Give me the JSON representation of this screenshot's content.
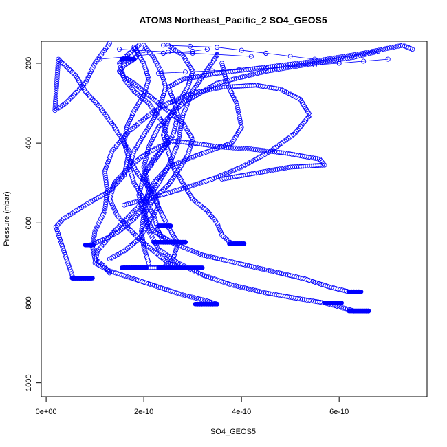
{
  "chart_data": {
    "type": "scatter",
    "title": "ATOM3 Northeast_Pacific_2 SO4_GEOS5",
    "xlabel": "SO4_GEOS5",
    "ylabel": "Pressure (mbar)",
    "xlim": [
      -1e-11,
      7.8e-10
    ],
    "ylim": [
      1035,
      145
    ],
    "y_reversed": true,
    "grid": false,
    "x_ticks": [
      0,
      2e-10,
      4e-10,
      6e-10
    ],
    "x_tick_labels": [
      "0e+00",
      "2e-10",
      "4e-10",
      "6e-10"
    ],
    "y_ticks": [
      200,
      400,
      600,
      800,
      1000
    ],
    "y_tick_labels": [
      "200",
      "400",
      "600",
      "800",
      "1000"
    ],
    "marker": "open-circle",
    "color": "#0000ff",
    "profiles": [
      {
        "x": [
          9.2e-11,
          8.5e-11,
          5.5e-11,
          2e-11,
          3.5e-11,
          8e-11,
          1.3e-10,
          1.6e-10,
          1.7e-10,
          1.4e-10,
          1.1e-10,
          8e-11,
          6e-11,
          2.5e-11,
          1.8e-11,
          4e-11,
          8e-11,
          1e-10,
          1.3e-10
        ],
        "y": [
          738,
          738,
          738,
          610,
          590,
          555,
          520,
          480,
          420,
          360,
          310,
          270,
          230,
          190,
          318,
          300,
          250,
          200,
          150
        ]
      },
      {
        "x": [
          9e-11,
          1.2e-10,
          1.5e-10,
          1.8e-10,
          2e-10,
          2.1e-10,
          2e-10,
          2.2e-10,
          2.5e-10,
          2.4e-10,
          2.1e-10,
          1.8e-10,
          1.6e-10,
          1.5e-10,
          1.7e-10,
          1.9e-10
        ],
        "y": [
          655,
          640,
          620,
          590,
          560,
          520,
          480,
          440,
          400,
          350,
          300,
          270,
          240,
          200,
          175,
          155
        ]
      },
      {
        "x": [
          2.85e-10,
          2.7e-10,
          2.4e-10,
          2.3e-10,
          2.2e-10,
          2e-10,
          1.8e-10,
          1.7e-10,
          1.8e-10,
          2e-10,
          2.2e-10,
          2.35e-10,
          2.45e-10,
          2.35e-10,
          2.2e-10,
          2e-10
        ],
        "y": [
          648,
          648,
          648,
          620,
          580,
          540,
          500,
          460,
          420,
          380,
          340,
          300,
          260,
          220,
          185,
          155
        ]
      },
      {
        "x": [
          4.05e-10,
          3.8e-10,
          3.6e-10,
          3.5e-10,
          3.3e-10,
          3e-10,
          2.8e-10,
          2.6e-10,
          2.5e-10,
          2.4e-10,
          2.5e-10,
          2.7e-10,
          2.9e-10,
          3e-10,
          2.8e-10,
          2.5e-10
        ],
        "y": [
          652,
          652,
          630,
          600,
          570,
          540,
          500,
          460,
          420,
          380,
          340,
          300,
          260,
          220,
          180,
          155
        ]
      },
      {
        "x": [
          3.1e-10,
          3.5e-10,
          3.3e-10,
          2.8e-10,
          2.3e-10,
          1.8e-10,
          1.3e-10,
          1e-10,
          1.05e-10,
          1.4e-10,
          1.8e-10,
          2.2e-10,
          2.5e-10,
          2.7e-10,
          2.8e-10,
          3e-10,
          3.5e-10
        ],
        "y": [
          803,
          803,
          795,
          780,
          760,
          740,
          720,
          700,
          670,
          620,
          570,
          520,
          460,
          400,
          330,
          270,
          180
        ]
      },
      {
        "x": [
          6.6e-10,
          6.3e-10,
          6e-10,
          5.7e-10,
          5.2e-10,
          4.5e-10,
          3.8e-10,
          3.2e-10,
          2.7e-10,
          2.3e-10,
          2.1e-10,
          2e-10,
          2.2e-10,
          2.5e-10,
          3.1e-10,
          3.8e-10,
          4e-10,
          3.9e-10,
          3.7e-10,
          3.6e-10
        ],
        "y": [
          820,
          820,
          810,
          800,
          790,
          775,
          755,
          730,
          700,
          665,
          620,
          560,
          500,
          460,
          430,
          400,
          360,
          300,
          250,
          200
        ]
      },
      {
        "x": [
          6.4e-10,
          6.2e-10,
          5.8e-10,
          5.3e-10,
          4.6e-10,
          3.9e-10,
          3.2e-10,
          2.6e-10,
          2.2e-10,
          2e-10,
          1.9e-10,
          2e-10,
          2.3e-10,
          2.6e-10,
          2.7e-10,
          2.6e-10,
          2.5e-10,
          2.8e-10,
          3.5e-10,
          4.5e-10,
          5.5e-10,
          6.5e-10,
          7.3e-10,
          7.5e-10
        ],
        "y": [
          772,
          772,
          760,
          740,
          720,
          700,
          680,
          650,
          620,
          580,
          530,
          480,
          430,
          380,
          330,
          290,
          260,
          240,
          225,
          210,
          195,
          175,
          155,
          165
        ]
      },
      {
        "x": [
          1.6e-10,
          1.8e-10,
          2.1e-10,
          2.4e-10,
          2.6e-10,
          2.7e-10,
          2.5e-10,
          2.3e-10,
          2.1e-10,
          2e-10,
          2.1e-10,
          2.3e-10,
          2.8e-10,
          3.5e-10,
          4.5e-10,
          5.5e-10,
          6.3e-10,
          6.8e-10
        ],
        "y": [
          712,
          712,
          712,
          712,
          690,
          650,
          610,
          560,
          510,
          460,
          410,
          360,
          300,
          250,
          220,
          200,
          185,
          170
        ]
      },
      {
        "x": [
          1.3e-10,
          1.6e-10,
          1.9e-10,
          2.1e-10,
          2.3e-10,
          2.2e-10,
          1.9e-10,
          1.7e-10,
          1.6e-10,
          1.65e-10,
          1.8e-10,
          2e-10,
          2.1e-10,
          2e-10,
          1.8e-10
        ],
        "y": [
          690,
          670,
          640,
          600,
          560,
          520,
          480,
          440,
          400,
          360,
          320,
          280,
          240,
          200,
          160
        ]
      },
      {
        "x": [
          2.7e-10,
          2.5e-10,
          2.3e-10,
          2e-10,
          1.7e-10,
          1.45e-10,
          1.3e-10,
          1.4e-10,
          1.7e-10,
          2e-10,
          2.3e-10,
          2.6e-10,
          3e-10,
          3.6e-10,
          4.2e-10,
          4.9e-10,
          5.6e-10,
          5.7e-10,
          5e-10,
          4.3e-10,
          3.6e-10
        ],
        "y": [
          710,
          700,
          680,
          650,
          615,
          580,
          540,
          500,
          460,
          430,
          410,
          395,
          400,
          410,
          415,
          425,
          440,
          455,
          460,
          475,
          490
        ]
      },
      {
        "x": [
          1.3e-10,
          1.2e-10,
          1e-10,
          9.5e-11,
          1e-10,
          1.2e-10,
          1.25e-10,
          1.2e-10,
          1.35e-10,
          1.7e-10,
          2.1e-10,
          2.5e-10,
          3e-10,
          3.6e-10,
          4.3e-10,
          4.8e-10,
          5.2e-10,
          5.4e-10,
          5.1e-10,
          4.6e-10,
          4e-10,
          3.4e-10,
          2.9e-10,
          2.5e-10,
          2.2e-10,
          1.9e-10,
          1.6e-10
        ],
        "y": [
          725,
          710,
          690,
          660,
          620,
          570,
          520,
          470,
          420,
          370,
          330,
          300,
          275,
          260,
          255,
          265,
          290,
          330,
          375,
          420,
          460,
          490,
          510,
          525,
          535,
          545,
          555
        ]
      },
      {
        "x": [
          2.1e-10,
          2e-10,
          1.95e-10,
          2e-10,
          2.2e-10,
          2.5e-10,
          2.7e-10,
          2.9e-10,
          3e-10,
          2.8e-10,
          2.5e-10,
          2.2e-10,
          2e-10,
          1.8e-10,
          1.6e-10,
          1.5e-10,
          1.6e-10,
          1.8e-10,
          1.9e-10,
          1.8e-10
        ],
        "y": [
          700,
          660,
          620,
          580,
          540,
          505,
          470,
          430,
          390,
          350,
          320,
          290,
          270,
          250,
          235,
          220,
          205,
          190,
          175,
          160
        ]
      }
    ],
    "horizontal_segments": [
      {
        "x1": 5.3e-11,
        "x2": 9.5e-11,
        "y": 738
      },
      {
        "x1": 8e-11,
        "x2": 9.7e-11,
        "y": 655
      },
      {
        "x1": 1.55e-10,
        "x2": 1.8e-10,
        "y": 190
      },
      {
        "x1": 1.55e-10,
        "x2": 2.05e-10,
        "y": 712
      },
      {
        "x1": 2.2e-10,
        "x2": 2.85e-10,
        "y": 648
      },
      {
        "x1": 2.3e-10,
        "x2": 2.55e-10,
        "y": 607
      },
      {
        "x1": 2.3e-10,
        "x2": 3.2e-10,
        "y": 712
      },
      {
        "x1": 3.05e-10,
        "x2": 3.5e-10,
        "y": 803
      },
      {
        "x1": 3.75e-10,
        "x2": 4.05e-10,
        "y": 652
      },
      {
        "x1": 6.2e-10,
        "x2": 6.6e-10,
        "y": 820
      },
      {
        "x1": 5.7e-10,
        "x2": 6.05e-10,
        "y": 800
      },
      {
        "x1": 6.2e-10,
        "x2": 6.45e-10,
        "y": 772
      }
    ],
    "transit_lines": [
      {
        "x": [
          1.1e-10,
          2.4e-10,
          3e-10,
          3.3e-10
        ],
        "y": [
          190,
          175,
          170,
          165
        ]
      },
      {
        "x": [
          2.3e-10,
          4.5e-10,
          6e-10,
          7e-10
        ],
        "y": [
          225,
          213,
          200,
          190
        ]
      },
      {
        "x": [
          2.4e-10,
          3.5e-10,
          4.5e-10,
          5.5e-10
        ],
        "y": [
          155,
          160,
          175,
          190
        ]
      },
      {
        "x": [
          1.5e-10,
          2.5e-10,
          3.5e-10,
          4.2e-10
        ],
        "y": [
          165,
          172,
          178,
          183
        ]
      }
    ]
  }
}
